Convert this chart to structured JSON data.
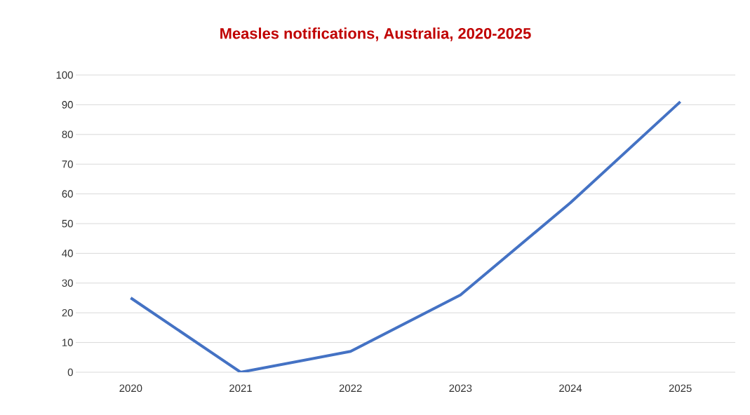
{
  "chart_data": {
    "type": "line",
    "title": "Measles notifications, Australia, 2020-2025",
    "categories": [
      "2020",
      "2021",
      "2022",
      "2023",
      "2024",
      "2025"
    ],
    "values": [
      25,
      0,
      7,
      26,
      57,
      91
    ],
    "color": "#4472c4",
    "ylim": [
      0,
      100
    ],
    "yticks": [
      0,
      10,
      20,
      30,
      40,
      50,
      60,
      70,
      80,
      90,
      100
    ],
    "grid": "y"
  }
}
